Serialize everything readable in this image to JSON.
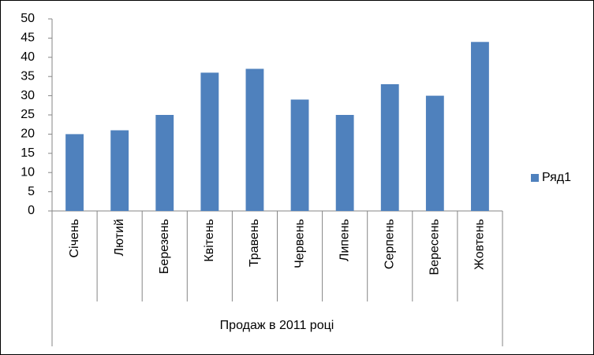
{
  "chart_data": {
    "type": "bar",
    "categories": [
      "Січень",
      "Лютий",
      "Березень",
      "Квітень",
      "Травень",
      "Червень",
      "Липень",
      "Серпень",
      "Вересень",
      "Жовтень"
    ],
    "group_label": "Продаж в 2011 році",
    "series": [
      {
        "name": "Ряд1",
        "color": "#4f81bd",
        "values": [
          20,
          21,
          25,
          36,
          37,
          29,
          25,
          33,
          30,
          44
        ]
      }
    ],
    "ylim": [
      0,
      50
    ],
    "yticks": [
      0,
      5,
      10,
      15,
      20,
      25,
      30,
      35,
      40,
      45,
      50
    ],
    "grid": false,
    "legend": "right"
  }
}
